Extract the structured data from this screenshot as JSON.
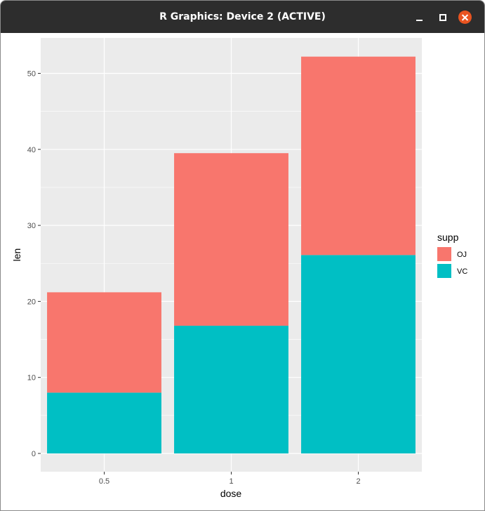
{
  "window": {
    "title": "R Graphics: Device 2 (ACTIVE)",
    "controls": {
      "minimize": "minimize-icon",
      "maximize": "maximize-icon",
      "close": "close-icon"
    },
    "close_color": "#e95420"
  },
  "chart_data": {
    "type": "bar",
    "stacked": true,
    "categories": [
      "0.5",
      "1",
      "2"
    ],
    "series": [
      {
        "name": "OJ",
        "color": "#F8766D",
        "values": [
          13.2,
          22.7,
          26.1
        ]
      },
      {
        "name": "VC",
        "color": "#00BFC4",
        "values": [
          8.0,
          16.8,
          26.1
        ]
      }
    ],
    "xlabel": "dose",
    "ylabel": "len",
    "ylim": [
      0,
      55
    ],
    "yticks": [
      0,
      10,
      20,
      30,
      40,
      50
    ],
    "grid": true,
    "panel_background": "#EBEBEB",
    "legend": {
      "title": "supp",
      "position": "right",
      "entries": [
        "OJ",
        "VC"
      ]
    }
  }
}
